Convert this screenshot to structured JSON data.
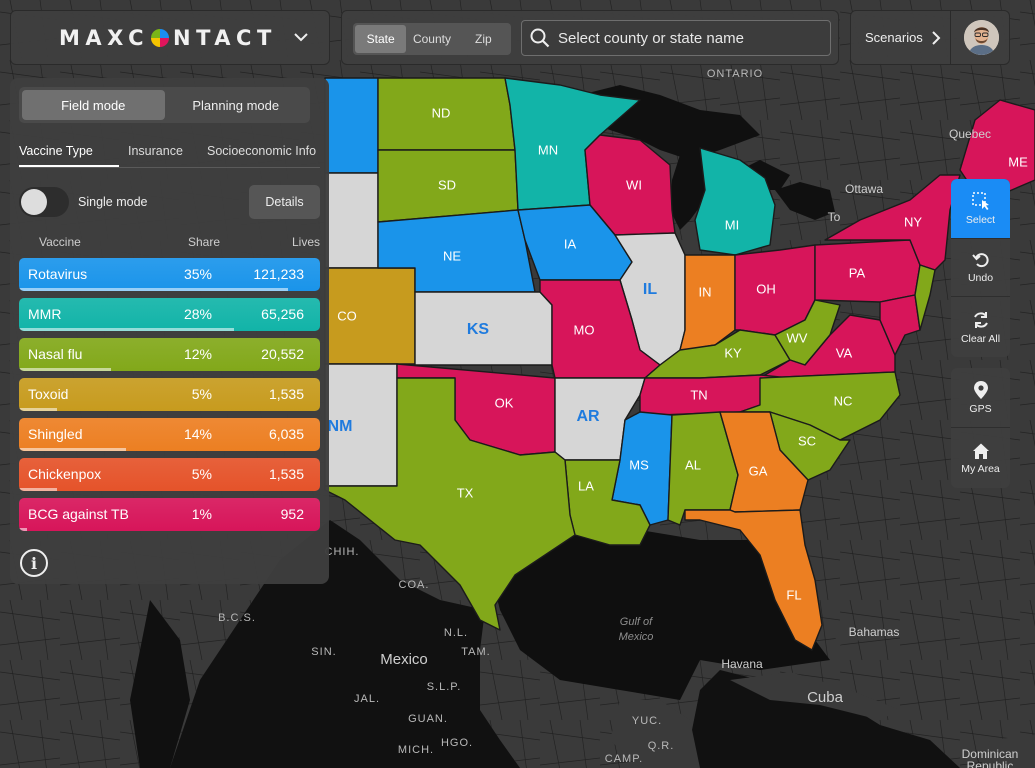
{
  "app": {
    "logo_text_left": "MAXC",
    "logo_text_right": "NTACT"
  },
  "search": {
    "segments": [
      "State",
      "County",
      "Zip"
    ],
    "active_segment": "State",
    "placeholder": "Select county or state name"
  },
  "header": {
    "scenarios_label": "Scenarios"
  },
  "panel": {
    "modes": [
      "Field mode",
      "Planning mode"
    ],
    "active_mode": "Field mode",
    "tabs": [
      "Vaccine Type",
      "Insurance",
      "Socioeconomic Info"
    ],
    "active_tab": "Vaccine Type",
    "single_mode_label": "Single mode",
    "single_mode_on": false,
    "details_label": "Details",
    "columns": {
      "vaccine": "Vaccine",
      "share": "Share",
      "lives": "Lives"
    },
    "vaccines": [
      {
        "name": "Rotavirus",
        "share": "35%",
        "lives": "121,233",
        "share_value": 0.35,
        "color": "#1a94ea"
      },
      {
        "name": "MMR",
        "share": "28%",
        "lives": "65,256",
        "share_value": 0.28,
        "color": "#12b4a8"
      },
      {
        "name": "Nasal flu",
        "share": "12%",
        "lives": "20,552",
        "share_value": 0.12,
        "color": "#82a81a"
      },
      {
        "name": "Toxoid",
        "share": "5%",
        "lives": "1,535",
        "share_value": 0.05,
        "color": "#c79b1e"
      },
      {
        "name": "Shingled",
        "share": "14%",
        "lives": "6,035",
        "share_value": 0.14,
        "color": "#ec7f22"
      },
      {
        "name": "Chickenpox",
        "share": "5%",
        "lives": "1,535",
        "share_value": 0.05,
        "color": "#e5532a"
      },
      {
        "name": "BCG against TB",
        "share": "1%",
        "lives": "952",
        "share_value": 0.01,
        "color": "#d7155a"
      }
    ]
  },
  "tools": {
    "select": "Select",
    "undo": "Undo",
    "clear_all": "Clear All",
    "gps": "GPS",
    "my_area": "My Area"
  },
  "map": {
    "states": {
      "ND": "ND",
      "MN": "MN",
      "SD": "SD",
      "WI": "WI",
      "MI": "MI",
      "NY": "NY",
      "ME": "ME",
      "NE": "NE",
      "IA": "IA",
      "IL": "IL",
      "IN": "IN",
      "OH": "OH",
      "PA": "PA",
      "CO": "CO",
      "KS": "KS",
      "MO": "MO",
      "KY": "KY",
      "WV": "WV",
      "VA": "VA",
      "OK": "OK",
      "AR": "AR",
      "TN": "TN",
      "NC": "NC",
      "NM": "NM",
      "SC": "SC",
      "MS": "MS",
      "AL": "AL",
      "GA": "GA",
      "TX": "TX",
      "LA": "LA",
      "FL": "FL"
    },
    "places": {
      "ontario": "ONTARIO",
      "quebec": "Quebec",
      "ottawa": "Ottawa",
      "to": "To",
      "chih": "CHIH.",
      "coa": "COA.",
      "bcs": "B.C.S.",
      "nl": "N.L.",
      "sin": "SIN.",
      "tam": "TAM.",
      "mexico": "Mexico",
      "slp": "S.L.P.",
      "jal": "JAL.",
      "guan": "GUAN.",
      "mich": "MICH.",
      "hgo": "HGO.",
      "yuc": "YUC.",
      "qr": "Q.R.",
      "camp": "CAMP.",
      "gulf1": "Gulf of",
      "gulf2": "Mexico",
      "havana": "Havana",
      "cuba": "Cuba",
      "bahamas": "Bahamas",
      "dominican1": "Dominican",
      "dominican2": "Republic"
    }
  }
}
